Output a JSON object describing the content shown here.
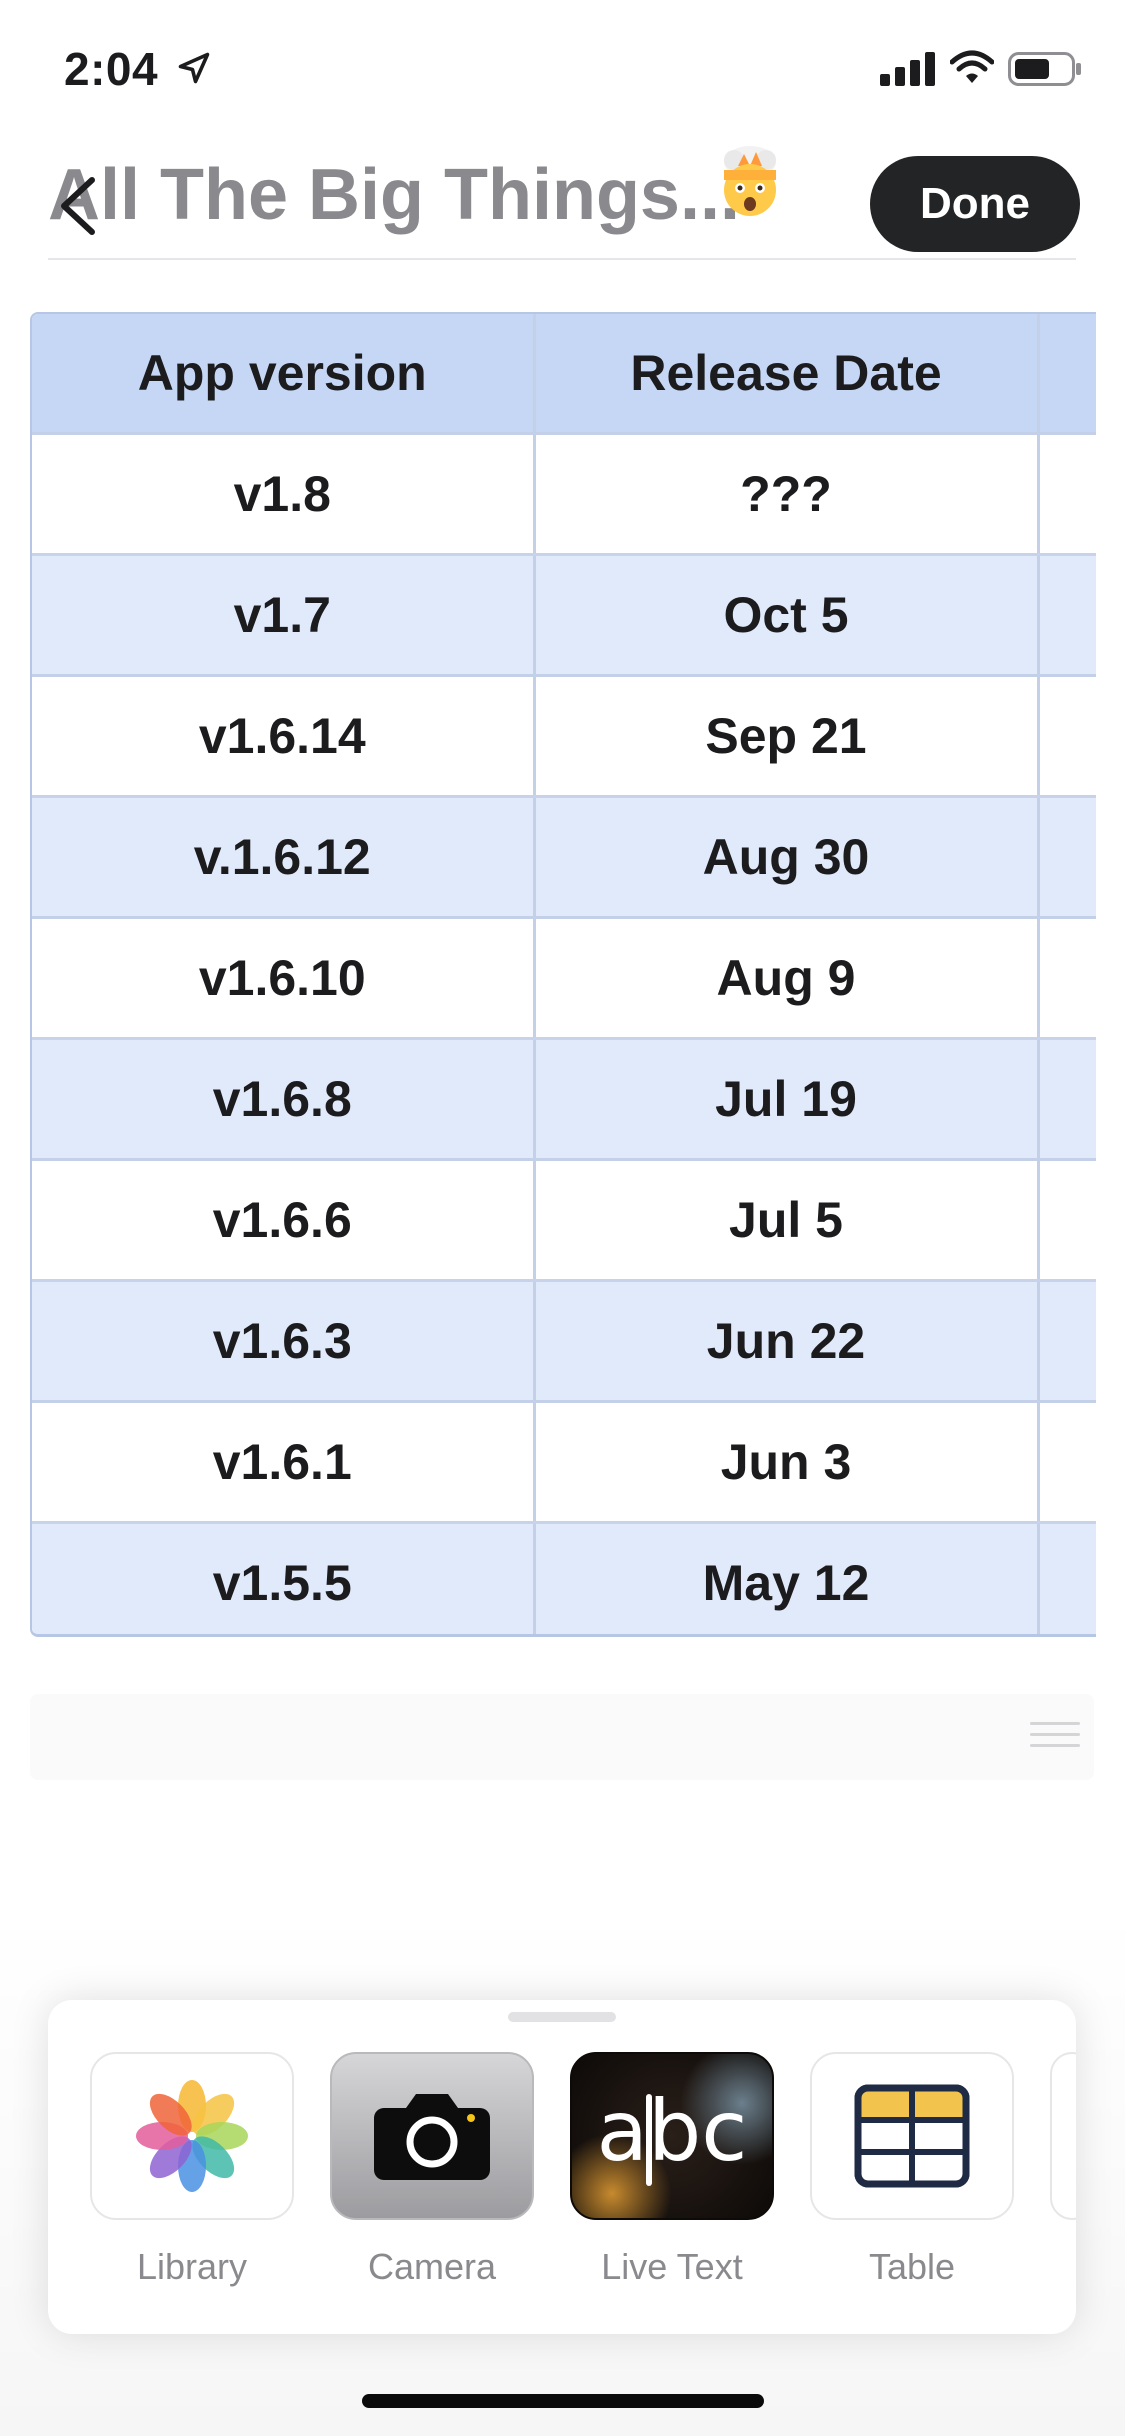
{
  "status_bar": {
    "time": "2:04"
  },
  "header": {
    "title": "All The Big Things...",
    "done_label": "Done"
  },
  "table": {
    "headers": [
      "App version",
      "Release Date",
      ""
    ],
    "rows": [
      [
        "v1.8",
        "???"
      ],
      [
        "v1.7",
        "Oct 5"
      ],
      [
        "v1.6.14",
        "Sep 21"
      ],
      [
        "v.1.6.12",
        "Aug 30"
      ],
      [
        "v1.6.10",
        "Aug 9"
      ],
      [
        "v1.6.8",
        "Jul 19"
      ],
      [
        "v1.6.6",
        "Jul 5"
      ],
      [
        "v1.6.3",
        "Jun 22"
      ],
      [
        "v1.6.1",
        "Jun 3"
      ],
      [
        "v1.5.5",
        "May 12"
      ]
    ]
  },
  "bottom_sheet": {
    "tools": [
      {
        "label": "Library",
        "icon": "photos-icon"
      },
      {
        "label": "Camera",
        "icon": "camera-icon"
      },
      {
        "label": "Live Text",
        "icon": "live-text-icon",
        "glyph_text": "abc"
      },
      {
        "label": "Table",
        "icon": "table-icon"
      }
    ]
  },
  "colors": {
    "header_row": "#c5d7f5",
    "alt_row": "#e0eafb",
    "done_button": "#222426",
    "title_gray": "#8a8a8e"
  }
}
